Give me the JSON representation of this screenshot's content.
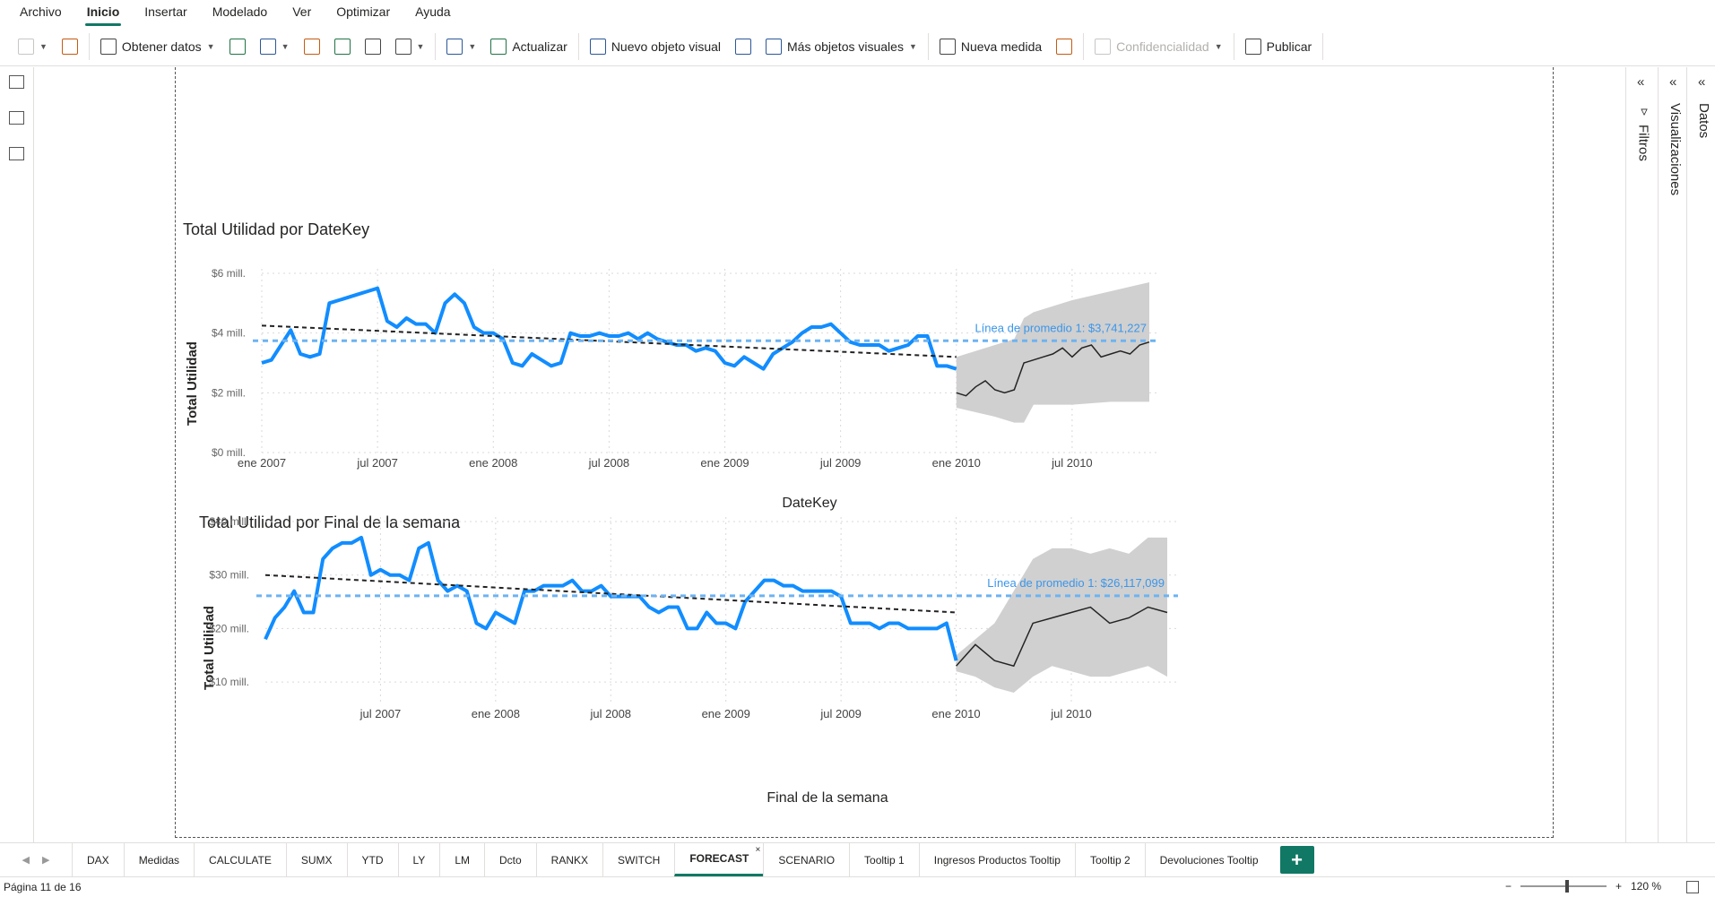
{
  "menu": [
    "Archivo",
    "Inicio",
    "Insertar",
    "Modelado",
    "Ver",
    "Optimizar",
    "Ayuda"
  ],
  "ribbon": {
    "get_data": "Obtener datos",
    "refresh": "Actualizar",
    "new_visual": "Nuevo objeto visual",
    "more_visuals": "Más objetos visuales",
    "new_measure": "Nueva medida",
    "sensitivity": "Confidencialidad",
    "publish": "Publicar"
  },
  "panes": {
    "filters": "Filtros",
    "visualizations": "Visualizaciones",
    "data": "Datos"
  },
  "tabs": [
    "DAX",
    "Medidas",
    "CALCULATE",
    "SUMX",
    "YTD",
    "LY",
    "LM",
    "Dcto",
    "RANKX",
    "SWITCH",
    "FORECAST",
    "SCENARIO",
    "Tooltip 1",
    "Ingresos Productos Tooltip",
    "Tooltip 2",
    "Devoluciones Tooltip"
  ],
  "active_tab": "FORECAST",
  "status": {
    "page": "Página 11 de 16",
    "zoom": "120 %"
  },
  "colors": {
    "series": "#118DFF",
    "forecast": "#252423",
    "band": "#d0d0d0",
    "avg": "#6DB3F2",
    "trend": "#222222",
    "brand": "#117865"
  },
  "chart_data": [
    {
      "type": "line",
      "title": "Total Utilidad por DateKey",
      "xlabel": "DateKey",
      "ylabel": "Total Utilidad",
      "ylim": [
        0,
        6
      ],
      "y_unit": "millones",
      "yticks": [
        0,
        2,
        4,
        6
      ],
      "yticklabels": [
        "$0 mill.",
        "$2 mill.",
        "$4 mill.",
        "$6 mill."
      ],
      "xlim": [
        0,
        46
      ],
      "xticks": [
        0,
        6,
        12,
        18,
        24,
        30,
        36,
        42
      ],
      "xticklabels": [
        "ene 2007",
        "jul 2007",
        "ene 2008",
        "jul 2008",
        "ene 2009",
        "jul 2009",
        "ene 2010",
        "jul 2010"
      ],
      "x_unit": "meses desde ene 2007",
      "series": [
        {
          "name": "Total Utilidad",
          "x": [
            0,
            0.5,
            1,
            1.5,
            2,
            2.5,
            3,
            3.5,
            4,
            4.5,
            5,
            5.5,
            6,
            6.5,
            7,
            7.5,
            8,
            8.5,
            9,
            9.5,
            10,
            10.5,
            11,
            11.5,
            12,
            12.5,
            13,
            13.5,
            14,
            14.5,
            15,
            15.5,
            16,
            16.5,
            17,
            17.5,
            18,
            18.5,
            19,
            19.5,
            20,
            20.5,
            21,
            21.5,
            22,
            22.5,
            23,
            23.5,
            24,
            24.5,
            25,
            25.5,
            26,
            26.5,
            27,
            27.5,
            28,
            28.5,
            29,
            29.5,
            30,
            30.5,
            31,
            31.5,
            32,
            32.5,
            33,
            33.5,
            34,
            34.5,
            35,
            35.5,
            36
          ],
          "y": [
            3.0,
            3.1,
            3.6,
            4.1,
            3.3,
            3.2,
            3.3,
            5.0,
            5.1,
            5.2,
            5.3,
            5.4,
            5.5,
            4.4,
            4.2,
            4.5,
            4.3,
            4.3,
            4.0,
            5.0,
            5.3,
            5.0,
            4.2,
            4.0,
            4.0,
            3.8,
            3.0,
            2.9,
            3.3,
            3.1,
            2.9,
            3.0,
            4.0,
            3.9,
            3.9,
            4.0,
            3.9,
            3.9,
            4.0,
            3.8,
            4.0,
            3.8,
            3.7,
            3.6,
            3.6,
            3.4,
            3.5,
            3.4,
            3.0,
            2.9,
            3.2,
            3.0,
            2.8,
            3.3,
            3.5,
            3.7,
            4.0,
            4.2,
            4.2,
            4.3,
            4.0,
            3.7,
            3.6,
            3.6,
            3.6,
            3.4,
            3.5,
            3.6,
            3.9,
            3.9,
            2.9,
            2.9,
            2.8
          ]
        },
        {
          "name": "Previsión",
          "x": [
            36,
            36.5,
            37,
            37.5,
            38,
            38.5,
            39,
            39.5,
            40,
            40.5,
            41,
            41.5,
            42,
            42.5,
            43,
            43.5,
            44,
            44.5,
            45,
            45.5,
            46
          ],
          "y": [
            2.0,
            1.9,
            2.2,
            2.4,
            2.1,
            2.0,
            2.1,
            3.0,
            3.1,
            3.2,
            3.3,
            3.5,
            3.2,
            3.5,
            3.6,
            3.2,
            3.3,
            3.4,
            3.3,
            3.6,
            3.7
          ]
        },
        {
          "name": "Banda superior",
          "x": [
            36,
            38,
            39,
            39.5,
            40,
            42,
            44,
            46
          ],
          "y": [
            3.2,
            3.6,
            3.8,
            4.5,
            4.7,
            5.1,
            5.4,
            5.7
          ]
        },
        {
          "name": "Banda inferior",
          "x": [
            36,
            38,
            39,
            39.5,
            40,
            42,
            44,
            46
          ],
          "y": [
            1.5,
            1.2,
            1.0,
            1.0,
            1.6,
            1.6,
            1.7,
            1.7
          ]
        }
      ],
      "trend": {
        "x": [
          0,
          36
        ],
        "y": [
          4.25,
          3.2
        ]
      },
      "average_line": {
        "value": 3.741227,
        "label": "Línea de promedio 1: $3,741,227"
      }
    },
    {
      "type": "line",
      "title": "Total Utilidad por Final de la semana",
      "xlabel": "Final de la semana",
      "ylabel": "Total Utilidad",
      "ylim": [
        6,
        40
      ],
      "y_unit": "millones",
      "yticks": [
        10,
        20,
        30,
        40
      ],
      "yticklabels": [
        "$10 mill.",
        "$20 mill.",
        "$30 mill.",
        "$40 mill."
      ],
      "xlim": [
        0,
        47
      ],
      "xticks": [
        6,
        12,
        18,
        24,
        30,
        36,
        42
      ],
      "xticklabels": [
        "jul 2007",
        "ene 2008",
        "jul 2008",
        "ene 2009",
        "jul 2009",
        "ene 2010",
        "jul 2010"
      ],
      "x_unit": "meses desde ene 2007",
      "series": [
        {
          "name": "Total Utilidad",
          "x": [
            0,
            0.5,
            1,
            1.5,
            2,
            2.5,
            3,
            3.5,
            4,
            4.5,
            5,
            5.5,
            6,
            6.5,
            7,
            7.5,
            8,
            8.5,
            9,
            9.5,
            10,
            10.5,
            11,
            11.5,
            12,
            12.5,
            13,
            13.5,
            14,
            14.5,
            15,
            15.5,
            16,
            16.5,
            17,
            17.5,
            18,
            18.5,
            19,
            19.5,
            20,
            20.5,
            21,
            21.5,
            22,
            22.5,
            23,
            23.5,
            24,
            24.5,
            25,
            25.5,
            26,
            26.5,
            27,
            27.5,
            28,
            28.5,
            29,
            29.5,
            30,
            30.5,
            31,
            31.5,
            32,
            32.5,
            33,
            33.5,
            34,
            34.5,
            35,
            35.5,
            36
          ],
          "y": [
            18,
            22,
            24,
            27,
            23,
            23,
            33,
            35,
            36,
            36,
            37,
            30,
            31,
            30,
            30,
            29,
            35,
            36,
            29,
            27,
            28,
            27,
            21,
            20,
            23,
            22,
            21,
            27,
            27,
            28,
            28,
            28,
            29,
            27,
            27,
            28,
            26,
            26,
            26,
            26,
            24,
            23,
            24,
            24,
            20,
            20,
            23,
            21,
            21,
            20,
            25,
            27,
            29,
            29,
            28,
            28,
            27,
            27,
            27,
            27,
            26,
            21,
            21,
            21,
            20,
            21,
            21,
            20,
            20,
            20,
            20,
            21,
            14
          ]
        },
        {
          "name": "Previsión",
          "x": [
            36,
            37,
            38,
            39,
            40,
            41,
            42,
            43,
            44,
            45,
            46,
            47
          ],
          "y": [
            13,
            17,
            14,
            13,
            21,
            22,
            23,
            24,
            21,
            22,
            24,
            23
          ]
        },
        {
          "name": "Banda superior",
          "x": [
            36,
            37,
            38,
            39,
            40,
            41,
            42,
            43,
            44,
            45,
            46,
            47
          ],
          "y": [
            15,
            18,
            21,
            27,
            33,
            35,
            35,
            34,
            35,
            34,
            37,
            37
          ]
        },
        {
          "name": "Banda inferior",
          "x": [
            36,
            37,
            38,
            39,
            40,
            41,
            42,
            43,
            44,
            45,
            46,
            47
          ],
          "y": [
            12,
            11,
            9,
            8,
            11,
            13,
            12,
            11,
            11,
            12,
            13,
            11
          ]
        }
      ],
      "trend": {
        "x": [
          0,
          36
        ],
        "y": [
          30,
          23
        ]
      },
      "average_line": {
        "value": 26.117099,
        "label": "Línea de promedio 1: $26,117,099"
      }
    }
  ]
}
